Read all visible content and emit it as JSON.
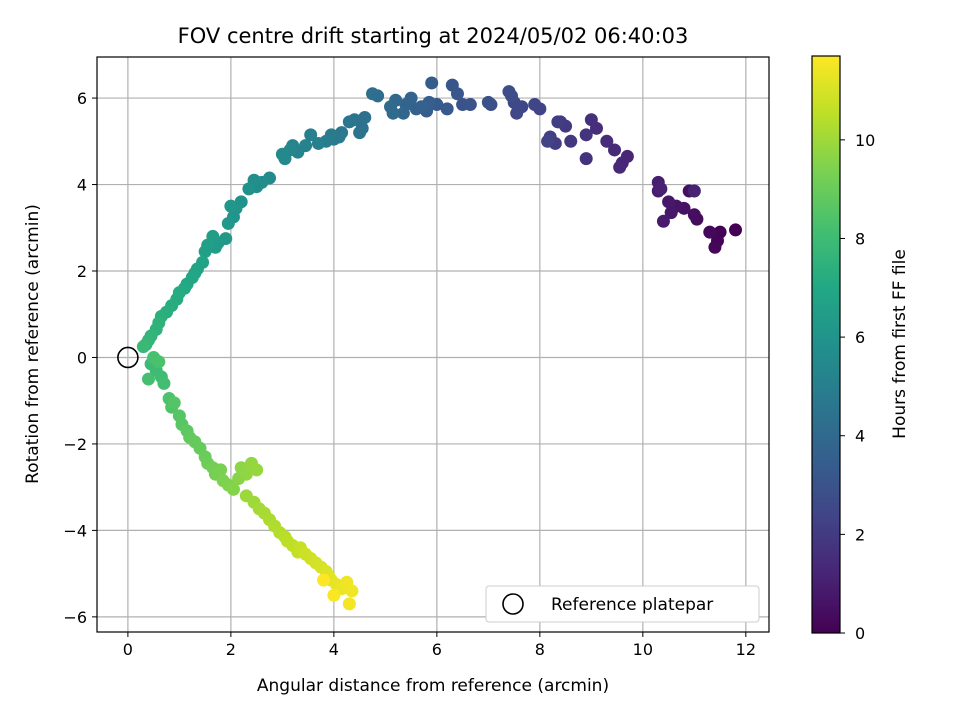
{
  "chart_data": {
    "type": "scatter",
    "title": "FOV centre drift starting at 2024/05/02 06:40:03",
    "xlabel": "Angular distance from reference (arcmin)",
    "ylabel": "Rotation from reference (arcmin)",
    "xlim": [
      -0.6,
      12.45
    ],
    "ylim": [
      -6.35,
      6.95
    ],
    "xticks": [
      0,
      2,
      4,
      6,
      8,
      10,
      12
    ],
    "yticks": [
      -6,
      -4,
      -2,
      0,
      2,
      4,
      6
    ],
    "grid": true,
    "colormap": "viridis",
    "colorbar": {
      "label": "Hours from first FF file",
      "range": [
        0,
        11.7
      ],
      "ticks": [
        0,
        2,
        4,
        6,
        8,
        10
      ]
    },
    "legend": {
      "position": "lower-right",
      "entries": [
        "Reference platepar"
      ]
    },
    "reference_point": {
      "x": 0,
      "y": 0
    },
    "series": [
      {
        "color_value": "hours",
        "x": [
          11.8,
          11.5,
          11.45,
          11.4,
          11.3,
          11.05,
          11.0,
          10.9,
          10.8,
          10.65,
          10.55,
          10.5,
          10.4,
          10.3,
          10.3,
          10.35,
          11.0,
          9.7,
          9.6,
          9.55,
          9.45,
          9.3,
          9.1,
          9.0,
          8.9,
          8.9,
          8.6,
          8.5,
          8.4,
          8.3,
          8.35,
          8.2,
          8.15,
          8.0,
          7.9,
          7.65,
          7.55,
          7.5,
          7.45,
          7.4,
          7.05,
          7.0,
          6.65,
          6.5,
          6.3,
          6.4,
          6.2,
          6.0,
          5.9,
          5.8,
          5.85,
          5.7,
          5.6,
          5.5,
          5.4,
          5.35,
          5.2,
          5.15,
          5.1,
          4.85,
          4.75,
          4.6,
          4.55,
          4.5,
          4.4,
          4.3,
          4.15,
          4.1,
          4.0,
          3.95,
          3.85,
          3.7,
          3.55,
          3.45,
          3.3,
          3.2,
          3.15,
          3.05,
          3.0,
          2.75,
          2.6,
          2.5,
          2.45,
          2.35,
          2.2,
          2.1,
          2.05,
          2.0,
          1.95,
          1.9,
          1.75,
          1.7,
          1.65,
          1.55,
          1.5,
          1.45,
          1.35,
          1.3,
          1.25,
          1.15,
          1.1,
          1.0,
          0.95,
          0.85,
          0.75,
          0.65,
          0.6,
          0.55,
          0.45,
          0.4,
          0.35,
          0.3,
          0.45,
          0.55,
          0.65,
          0.7,
          0.4,
          0.5,
          0.6,
          0.8,
          0.85,
          0.9,
          1.0,
          1.05,
          1.15,
          1.2,
          1.3,
          1.4,
          1.5,
          1.55,
          1.65,
          1.7,
          1.8,
          1.85,
          1.95,
          2.05,
          2.15,
          2.2,
          2.3,
          2.4,
          2.5,
          2.3,
          2.45,
          2.55,
          2.65,
          2.75,
          2.85,
          2.95,
          3.05,
          3.1,
          3.2,
          3.3,
          3.35,
          3.45,
          3.55,
          3.65,
          3.75,
          3.85,
          3.9,
          3.95,
          4.05,
          4.15,
          4.25,
          4.35,
          4.3,
          4.0,
          3.8
        ],
        "y": [
          2.95,
          2.9,
          2.7,
          2.55,
          2.9,
          3.2,
          3.3,
          3.85,
          3.45,
          3.5,
          3.35,
          3.6,
          3.15,
          3.85,
          4.05,
          3.9,
          3.85,
          4.65,
          4.5,
          4.4,
          4.8,
          5.0,
          5.3,
          5.5,
          4.6,
          5.15,
          5.0,
          5.35,
          5.45,
          4.95,
          5.45,
          5.1,
          5.0,
          5.75,
          5.85,
          5.8,
          5.65,
          5.9,
          6.05,
          6.15,
          5.85,
          5.9,
          5.85,
          5.85,
          6.3,
          6.1,
          5.75,
          5.85,
          6.35,
          5.7,
          5.9,
          5.8,
          5.75,
          6.0,
          5.85,
          5.65,
          5.95,
          5.65,
          5.8,
          6.05,
          6.1,
          5.55,
          5.3,
          5.2,
          5.5,
          5.45,
          5.2,
          5.1,
          5.05,
          5.15,
          5.0,
          4.95,
          5.15,
          4.9,
          4.75,
          4.9,
          4.8,
          4.6,
          4.7,
          4.15,
          4.05,
          3.95,
          4.1,
          3.9,
          3.6,
          3.45,
          3.25,
          3.5,
          3.1,
          2.75,
          2.65,
          2.55,
          2.8,
          2.6,
          2.45,
          2.2,
          2.05,
          1.95,
          1.85,
          1.7,
          1.6,
          1.5,
          1.35,
          1.2,
          1.05,
          0.95,
          0.8,
          0.65,
          0.5,
          0.4,
          0.3,
          0.25,
          -0.15,
          -0.3,
          -0.45,
          -0.6,
          -0.5,
          0.0,
          -0.1,
          -0.95,
          -1.15,
          -1.05,
          -1.35,
          -1.55,
          -1.7,
          -1.85,
          -1.95,
          -2.1,
          -2.3,
          -2.45,
          -2.55,
          -2.7,
          -2.6,
          -2.85,
          -2.95,
          -3.05,
          -2.8,
          -2.55,
          -2.7,
          -2.45,
          -2.6,
          -3.2,
          -3.35,
          -3.5,
          -3.6,
          -3.75,
          -3.9,
          -4.05,
          -4.15,
          -4.25,
          -4.35,
          -4.5,
          -4.4,
          -4.55,
          -4.65,
          -4.75,
          -4.85,
          -4.95,
          -5.05,
          -5.15,
          -5.25,
          -5.35,
          -5.2,
          -5.4,
          -5.7,
          -5.5,
          -5.15
        ],
        "hours": []
      }
    ]
  }
}
